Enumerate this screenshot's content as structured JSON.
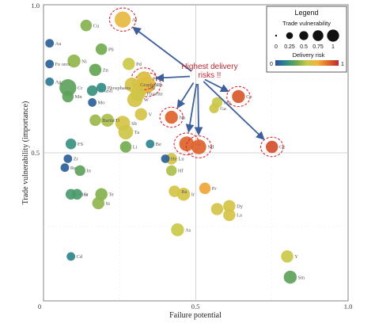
{
  "chart_data": {
    "type": "scatter",
    "xlabel": "Failure potential",
    "ylabel": "Trade vulnerability (importance)",
    "xlim": [
      0,
      1
    ],
    "ylim": [
      0,
      1
    ],
    "x_ticks": [
      "0",
      "0.5",
      "1.0"
    ],
    "y_ticks": [
      "0",
      "0.5",
      "1.0"
    ],
    "reference_lines": {
      "x": 0.5,
      "y": 0.5
    },
    "callout": {
      "text_line1": "Highest delivery",
      "text_line2": "risks !!"
    },
    "legend": {
      "title": "Legend",
      "size_title": "Trade vulnerability",
      "size_ticks": [
        "0",
        "0.25",
        "0.5",
        "0.75",
        "1"
      ],
      "color_title": "Delivery risk",
      "color_min": "0",
      "color_max": "1",
      "colormap": [
        "#2c4f9e",
        "#2e8b8b",
        "#6aa84f",
        "#c9c94a",
        "#f1b43c",
        "#e06a2c",
        "#c0282e"
      ]
    },
    "points": [
      {
        "label": "Au",
        "x": 0.02,
        "y": 0.87,
        "v": 0.04,
        "r": 0.05
      },
      {
        "label": "Cu",
        "x": 0.14,
        "y": 0.93,
        "v": 0.1,
        "r": 0.38
      },
      {
        "label": "Al",
        "x": 0.26,
        "y": 0.95,
        "v": 0.25,
        "r": 0.62,
        "highlight": true
      },
      {
        "label": "Pb",
        "x": 0.19,
        "y": 0.85,
        "v": 0.1,
        "r": 0.35
      },
      {
        "label": "Fe ores",
        "x": 0.02,
        "y": 0.8,
        "v": 0.04,
        "r": 0.05
      },
      {
        "label": "Ni",
        "x": 0.1,
        "y": 0.81,
        "v": 0.14,
        "r": 0.4
      },
      {
        "label": "Zn",
        "x": 0.17,
        "y": 0.78,
        "v": 0.12,
        "r": 0.32
      },
      {
        "label": "Pd",
        "x": 0.28,
        "y": 0.8,
        "v": 0.12,
        "r": 0.5
      },
      {
        "label": "Ag",
        "x": 0.02,
        "y": 0.74,
        "v": 0.04,
        "r": 0.12
      },
      {
        "label": "Cr",
        "x": 0.08,
        "y": 0.72,
        "v": 0.28,
        "r": 0.3
      },
      {
        "label": "Mn",
        "x": 0.08,
        "y": 0.69,
        "v": 0.1,
        "r": 0.3
      },
      {
        "label": "Potash",
        "x": 0.16,
        "y": 0.71,
        "v": 0.08,
        "r": 0.2
      },
      {
        "label": "Phosphates",
        "x": 0.19,
        "y": 0.72,
        "v": 0.06,
        "r": 0.18
      },
      {
        "label": "Mo",
        "x": 0.16,
        "y": 0.67,
        "v": 0.04,
        "r": 0.05
      },
      {
        "label": "Graphite",
        "x": 0.29,
        "y": 0.73,
        "v": 0.18,
        "r": 0.55
      },
      {
        "label": "Pt",
        "x": 0.33,
        "y": 0.75,
        "v": 0.2,
        "r": 0.58,
        "highlight": true
      },
      {
        "label": "Bi",
        "x": 0.32,
        "y": 0.72,
        "v": 0.25,
        "r": 0.62
      },
      {
        "label": "Rh",
        "x": 0.34,
        "y": 0.73,
        "v": 0.28,
        "r": 0.65,
        "highlight": true
      },
      {
        "label": "W",
        "x": 0.3,
        "y": 0.68,
        "v": 0.22,
        "r": 0.55
      },
      {
        "label": "Fluorite",
        "x": 0.31,
        "y": 0.7,
        "v": 0.2,
        "r": 0.52
      },
      {
        "label": "Co",
        "x": 0.64,
        "y": 0.69,
        "v": 0.14,
        "r": 0.88,
        "highlight": true
      },
      {
        "label": "Ga",
        "x": 0.56,
        "y": 0.65,
        "v": 0.06,
        "r": 0.52
      },
      {
        "label": "Mg",
        "x": 0.57,
        "y": 0.67,
        "v": 0.08,
        "r": 0.5
      },
      {
        "label": "Barite",
        "x": 0.17,
        "y": 0.61,
        "v": 0.1,
        "r": 0.42
      },
      {
        "label": "Ti",
        "x": 0.21,
        "y": 0.61,
        "v": 0.14,
        "r": 0.45
      },
      {
        "label": "Sb",
        "x": 0.26,
        "y": 0.6,
        "v": 0.2,
        "r": 0.55
      },
      {
        "label": "V",
        "x": 0.32,
        "y": 0.63,
        "v": 0.12,
        "r": 0.55
      },
      {
        "label": "Nb",
        "x": 0.42,
        "y": 0.62,
        "v": 0.14,
        "r": 0.85,
        "highlight": true
      },
      {
        "label": "Ta",
        "x": 0.27,
        "y": 0.57,
        "v": 0.2,
        "r": 0.52
      },
      {
        "label": "Be",
        "x": 0.35,
        "y": 0.53,
        "v": 0.04,
        "r": 0.15
      },
      {
        "label": "Li",
        "x": 0.27,
        "y": 0.52,
        "v": 0.1,
        "r": 0.35
      },
      {
        "label": "FS",
        "x": 0.09,
        "y": 0.53,
        "v": 0.08,
        "r": 0.2
      },
      {
        "label": "Ru",
        "x": 0.47,
        "y": 0.53,
        "v": 0.2,
        "r": 0.85,
        "highlight": true
      },
      {
        "label": "Nd",
        "x": 0.51,
        "y": 0.52,
        "v": 0.2,
        "r": 0.85,
        "highlight": true
      },
      {
        "label": "Ge",
        "x": 0.75,
        "y": 0.52,
        "v": 0.12,
        "r": 0.9,
        "highlight": true
      },
      {
        "label": "Zr",
        "x": 0.08,
        "y": 0.48,
        "v": 0.04,
        "r": 0.05
      },
      {
        "label": "He",
        "x": 0.4,
        "y": 0.48,
        "v": 0.04,
        "r": 0.05
      },
      {
        "label": "Lu",
        "x": 0.42,
        "y": 0.48,
        "v": 0.1,
        "r": 0.55
      },
      {
        "label": "Re",
        "x": 0.07,
        "y": 0.45,
        "v": 0.04,
        "r": 0.05
      },
      {
        "label": "In",
        "x": 0.12,
        "y": 0.44,
        "v": 0.08,
        "r": 0.3
      },
      {
        "label": "Hf",
        "x": 0.42,
        "y": 0.44,
        "v": 0.08,
        "r": 0.45
      },
      {
        "label": "Mica",
        "x": 0.09,
        "y": 0.36,
        "v": 0.08,
        "r": 0.25
      },
      {
        "label": "Sr",
        "x": 0.11,
        "y": 0.36,
        "v": 0.08,
        "r": 0.25
      },
      {
        "label": "Te",
        "x": 0.19,
        "y": 0.36,
        "v": 0.12,
        "r": 0.38
      },
      {
        "label": "Si",
        "x": 0.18,
        "y": 0.33,
        "v": 0.12,
        "r": 0.4
      },
      {
        "label": "Ba",
        "x": 0.43,
        "y": 0.37,
        "v": 0.1,
        "r": 0.55
      },
      {
        "label": "Pr",
        "x": 0.53,
        "y": 0.38,
        "v": 0.1,
        "r": 0.7
      },
      {
        "label": "Ir",
        "x": 0.46,
        "y": 0.36,
        "v": 0.14,
        "r": 0.55
      },
      {
        "label": "Ce",
        "x": 0.57,
        "y": 0.31,
        "v": 0.12,
        "r": 0.55
      },
      {
        "label": "Dy",
        "x": 0.61,
        "y": 0.32,
        "v": 0.12,
        "r": 0.55
      },
      {
        "label": "La",
        "x": 0.61,
        "y": 0.29,
        "v": 0.12,
        "r": 0.55
      },
      {
        "label": "As",
        "x": 0.44,
        "y": 0.24,
        "v": 0.14,
        "r": 0.5
      },
      {
        "label": "Cd",
        "x": 0.09,
        "y": 0.15,
        "v": 0.04,
        "r": 0.15
      },
      {
        "label": "Y",
        "x": 0.8,
        "y": 0.15,
        "v": 0.12,
        "r": 0.5
      },
      {
        "label": "Sm",
        "x": 0.81,
        "y": 0.08,
        "v": 0.14,
        "r": 0.3
      }
    ]
  }
}
